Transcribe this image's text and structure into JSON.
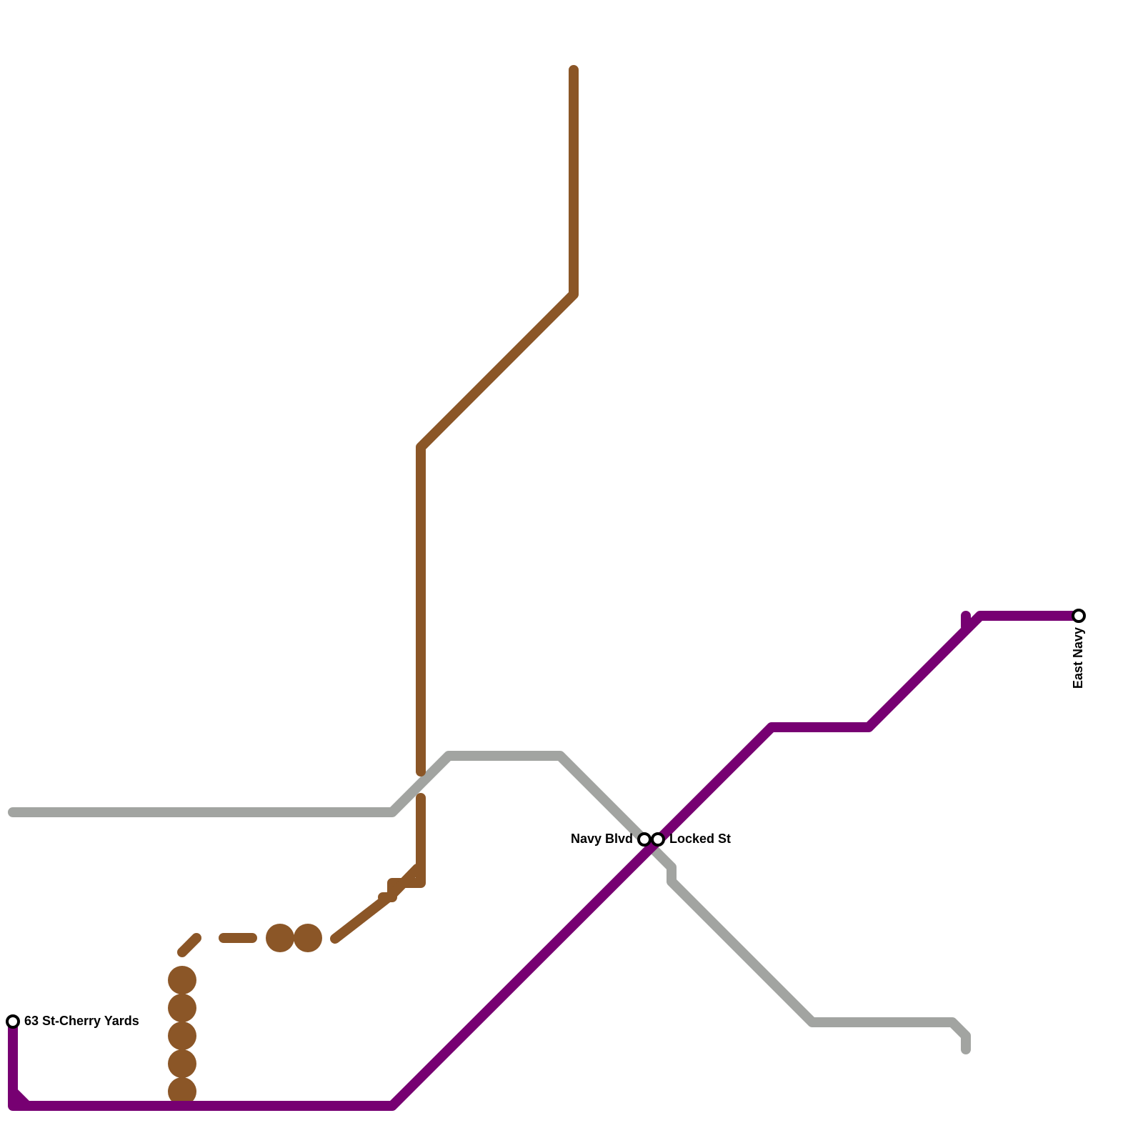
{
  "stations": [
    {
      "label": "63 St-Cherry Yards"
    },
    {
      "label": "Navy Blvd"
    },
    {
      "label": "Locked St"
    },
    {
      "label": "East Navy"
    }
  ]
}
